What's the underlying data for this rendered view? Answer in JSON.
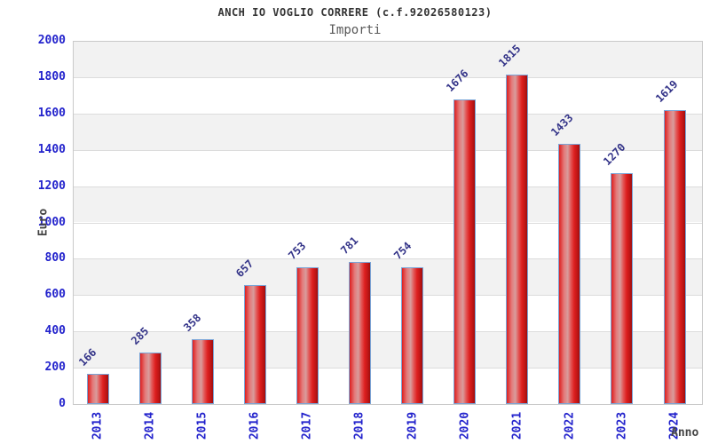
{
  "header": {
    "title": "ANCH IO VOGLIO CORRERE (c.f.92026580123)",
    "subtitle": "Importi"
  },
  "chart_data": {
    "type": "bar",
    "title": "ANCH IO VOGLIO CORRERE (c.f.92026580123)",
    "subtitle": "Importi",
    "categories": [
      "2013",
      "2014",
      "2015",
      "2016",
      "2017",
      "2018",
      "2019",
      "2020",
      "2021",
      "2022",
      "2023",
      "2024"
    ],
    "values": [
      166,
      285,
      358,
      657,
      753,
      781,
      754,
      1676,
      1815,
      1433,
      1270,
      1619
    ],
    "xlabel": "Anno",
    "ylabel": "Euro",
    "ylim": [
      0,
      2000
    ],
    "ytick_step": 200,
    "grid": true,
    "legend": "none",
    "colors": {
      "bar_main": "#dd1f1f",
      "bar_highlight": "#d89c9c",
      "bar_shadow": "#9d0f0f",
      "bar_border": "#79a5d8",
      "tick_label": "#2222cc",
      "value_label": "#333388",
      "axis_title": "#444444",
      "band": "#f2f2f2",
      "gridline": "#dcdcdc",
      "frame": "#c9c9c9",
      "background": "#ffffff",
      "title": "#333333",
      "subtitle": "#585858"
    }
  }
}
